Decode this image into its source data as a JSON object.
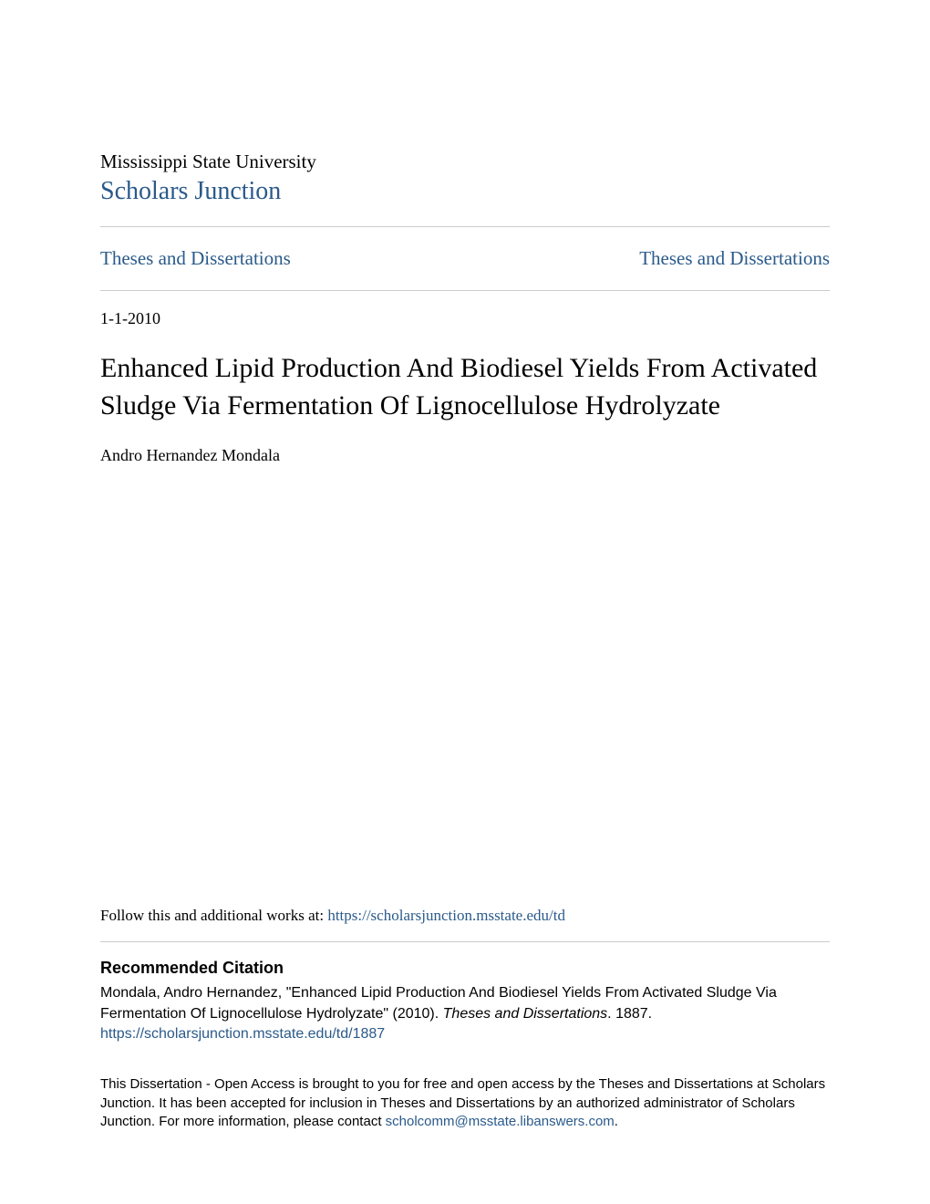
{
  "header": {
    "institution": "Mississippi State University",
    "repository_name": "Scholars Junction"
  },
  "collection": {
    "left_link": "Theses and Dissertations",
    "right_link": "Theses and Dissertations"
  },
  "document": {
    "date": "1-1-2010",
    "title": "Enhanced Lipid Production And Biodiesel Yields From Activated Sludge Via Fermentation Of Lignocellulose Hydrolyzate",
    "author": "Andro Hernandez Mondala"
  },
  "follow": {
    "prefix": "Follow this and additional works at: ",
    "url": "https://scholarsjunction.msstate.edu/td"
  },
  "citation": {
    "heading": "Recommended Citation",
    "text_part1": "Mondala, Andro Hernandez, \"Enhanced Lipid Production And Biodiesel Yields From Activated Sludge Via Fermentation Of Lignocellulose Hydrolyzate\" (2010). ",
    "series": "Theses and Dissertations",
    "text_part2": ". 1887.",
    "url": "https://scholarsjunction.msstate.edu/td/1887"
  },
  "access": {
    "text_part1": "This Dissertation - Open Access is brought to you for free and open access by the Theses and Dissertations at Scholars Junction. It has been accepted for inclusion in Theses and Dissertations by an authorized administrator of Scholars Junction. For more information, please contact ",
    "email": "scholcomm@msstate.libanswers.com",
    "text_part2": "."
  },
  "colors": {
    "link_color": "#2a5a8a",
    "text_color": "#000000",
    "divider_color": "#cccccc",
    "background": "#ffffff"
  },
  "typography": {
    "institution_fontsize": 21,
    "repository_fontsize": 28,
    "collection_fontsize": 21,
    "date_fontsize": 18,
    "title_fontsize": 30,
    "author_fontsize": 18,
    "follow_fontsize": 17,
    "citation_heading_fontsize": 18,
    "citation_text_fontsize": 16,
    "access_fontsize": 15
  }
}
